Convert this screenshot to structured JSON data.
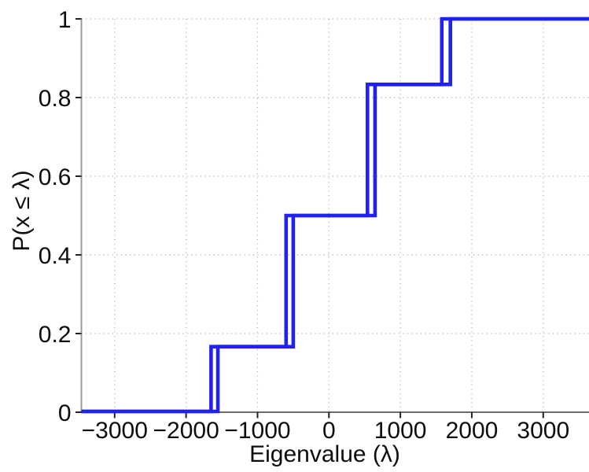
{
  "figure": {
    "background": "#ffffff"
  },
  "chart_data": {
    "type": "line",
    "subtype": "empirical-cdf-steps",
    "title": "",
    "xlabel": "Eigenvalue (λ)",
    "ylabel": "P(x ≤ λ)",
    "x_axis": {
      "ticks": [
        -3000,
        -2000,
        -1000,
        0,
        1000,
        2000,
        3000
      ],
      "tick_labels": [
        "−3000",
        "−2000",
        "−1000",
        "0",
        "1000",
        "2000",
        "3000"
      ],
      "visible_range": [
        -3460,
        3640
      ]
    },
    "y_axis": {
      "ticks": [
        0,
        0.2,
        0.4,
        0.6,
        0.8,
        1
      ],
      "tick_labels": [
        "0",
        "0.2",
        "0.4",
        "0.6",
        "0.8",
        "1"
      ],
      "range": [
        0,
        1
      ]
    },
    "grid": {
      "shown": true,
      "style": "dotted",
      "color": "#b8b8b8"
    },
    "legend": {
      "shown": false
    },
    "line_color": "#2121f2",
    "cdf_levels": [
      0,
      0.1667,
      0.5,
      0.8333,
      1
    ],
    "series": [
      {
        "name": "ecdf-curve-1",
        "eigenvalues": [
          -1650,
          -600,
          -600,
          540,
          540,
          1580
        ]
      },
      {
        "name": "ecdf-curve-2",
        "eigenvalues": [
          -1555,
          -500,
          -500,
          645,
          645,
          1700
        ]
      }
    ]
  }
}
